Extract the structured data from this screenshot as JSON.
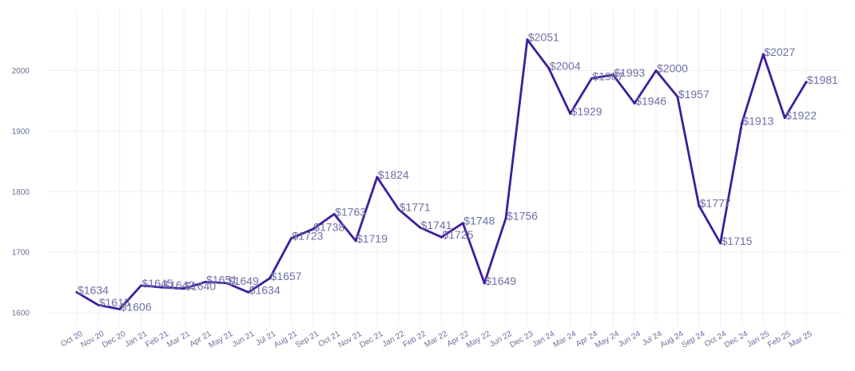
{
  "chart_data": {
    "type": "line",
    "title": "",
    "xlabel": "",
    "ylabel": "",
    "categories": [
      "Oct 20",
      "Nov 20",
      "Dec 20",
      "Jan 21",
      "Feb 21",
      "Mar 21",
      "Apr 21",
      "May 21",
      "Jun 21",
      "Jul 21",
      "Aug 21",
      "Sep 21",
      "Oct 21",
      "Nov 21",
      "Dec 21",
      "Jan 22",
      "Feb 22",
      "Mar 22",
      "Apr 22",
      "May 22",
      "Jun 22",
      "Dec 23",
      "Jan 24",
      "Mar 24",
      "Apr 24",
      "May 24",
      "Jun 24",
      "Jul 24",
      "Aug 24",
      "Sep 24",
      "Oct 24",
      "Dec 24",
      "Jan 25",
      "Feb 25",
      "Mar 25"
    ],
    "values": [
      1634,
      1613,
      1606,
      1645,
      1642,
      1640,
      1651,
      1649,
      1634,
      1657,
      1723,
      1738,
      1763,
      1719,
      1824,
      1771,
      1741,
      1725,
      1748,
      1649,
      1756,
      2051,
      2004,
      1929,
      1987,
      1993,
      1946,
      2000,
      1957,
      1777,
      1715,
      1913,
      2027,
      1922,
      1981
    ],
    "data_labels": [
      "$1634",
      "$1613",
      "$1606",
      "$1645",
      "$1642",
      "$1640",
      "$1651",
      "$1649",
      "$1634",
      "$1657",
      "$1723",
      "$1738",
      "$1763",
      "$1719",
      "$1824",
      "$1771",
      "$1741",
      "$1725",
      "$1748",
      "$1649",
      "$1756",
      "$2051",
      "$2004",
      "$1929",
      "$1987",
      "$1993",
      "$1946",
      "$2000",
      "$1957",
      "$1777",
      "$1715",
      "$1913",
      "$2027",
      "$1922",
      "$1981"
    ],
    "y_ticks": [
      1600,
      1700,
      1800,
      1900,
      2000
    ],
    "ylim": [
      1583,
      2077
    ],
    "grid": true,
    "legend": "none",
    "line_color": "#3f1d9c",
    "label_color": "#6f6fa8",
    "tick_color": "#6b6f9e",
    "grid_color": "#f0f0f4"
  }
}
